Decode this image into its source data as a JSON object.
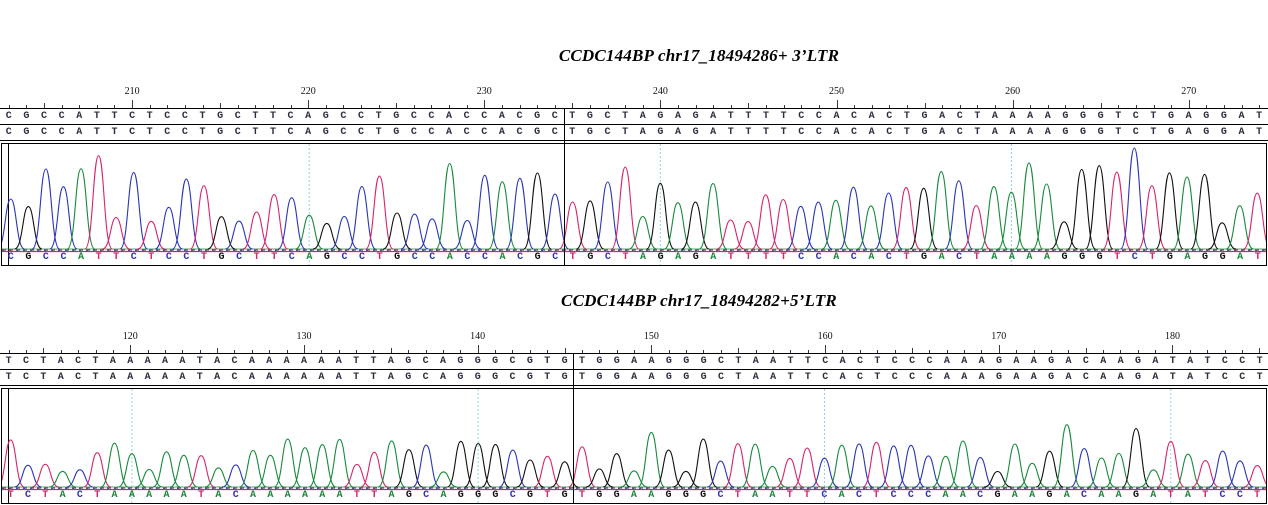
{
  "base_colors": {
    "A": "#178a3b",
    "C": "#2a35b5",
    "G": "#101010",
    "T": "#d6246e"
  },
  "reference_text_color": "#2e2e40",
  "ruler_guide_color": "#8fd3e0",
  "panels": [
    {
      "title": "CCDC144BP chr17_18494286+ 3’LTR",
      "ruler_start": 203,
      "ruler_labels": [
        210,
        220,
        230,
        240,
        250,
        260,
        270
      ],
      "reference_rows": [
        "CGCCATTCTCCTGCTTCAGCCTGCCACCACGCTGCTAGAGATTTTCCACACTGACTAAAAGGGTCTGAGGAT",
        "CGCCATTCTCCTGCTTCAGCCTGCCACCACGCTGCTAGAGATTTTCCACACTGACTAAAAGGGTCTGAGGAT"
      ],
      "base_calls": "CGCCATTCTCCTGCTTCAGCCTGCCACCACGCTGCTAGAGATTTTCCACACTGACTAAAAGGGTCTGAGGAT",
      "junction_index": 32,
      "guide_positions": [
        220,
        240,
        260
      ]
    },
    {
      "title": "CCDC144BP  chr17_18494282+5’LTR",
      "ruler_start": 113,
      "ruler_labels": [
        120,
        130,
        140,
        150,
        160,
        170,
        180
      ],
      "reference_rows": [
        "TCTACTAAAAATACAAAAAATTAGCAGGGCGTGTGGAAGGGCTAATTCACTCCCAAAGAAGACAAGATATCCT",
        "TCTACTAAAAATACAAAAAATTAGCAGGGCGTGTGGAAGGGCTAATTCACTCCCAAAGAAGACAAGATATCCT"
      ],
      "base_calls": "TCTACTAAAAATACAAAAAATTAGCAGGGCGTGTGGAAGGGCTAATTCACTCCCAACGAAGACAAGATATCCT",
      "junction_index": 33,
      "guide_positions": [
        120,
        140,
        160,
        180
      ]
    }
  ]
}
